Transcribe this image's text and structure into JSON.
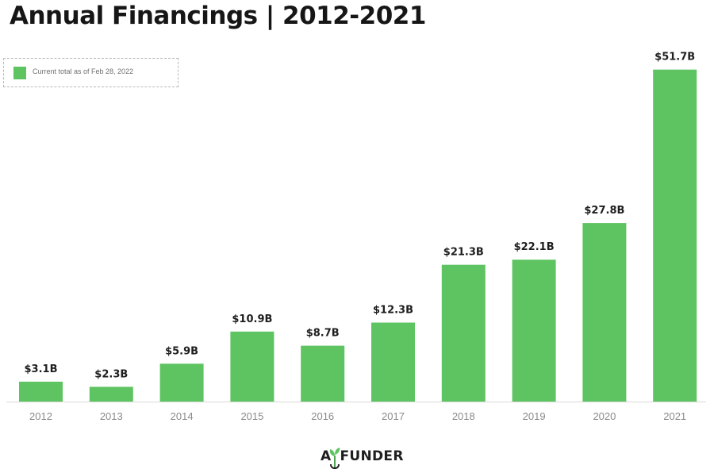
{
  "colors": {
    "bar": "#5ec461",
    "axis": "#d9d9d9",
    "title": "#161616"
  },
  "legend": {
    "label": "Current total as of Feb 28, 2022"
  },
  "logo": {
    "text": "AgFUNDER",
    "icon": "sprout-icon"
  },
  "chart_data": {
    "type": "bar",
    "title": "Annual Financings | 2012-2021",
    "xlabel": "",
    "ylabel": "",
    "ylim": [
      0,
      55
    ],
    "grid": false,
    "legend_position": "top-left",
    "categories": [
      "2012",
      "2013",
      "2014",
      "2015",
      "2016",
      "2017",
      "2018",
      "2019",
      "2020",
      "2021"
    ],
    "values": [
      3.1,
      2.3,
      5.9,
      10.9,
      8.7,
      12.3,
      21.3,
      22.1,
      27.8,
      51.7
    ],
    "data_labels": [
      "$3.1B",
      "$2.3B",
      "$5.9B",
      "$10.9B",
      "$8.7B",
      "$12.3B",
      "$21.3B",
      "$22.1B",
      "$27.8B",
      "$51.7B"
    ],
    "series": [
      {
        "name": "Current total as of Feb 28, 2022",
        "values": [
          3.1,
          2.3,
          5.9,
          10.9,
          8.7,
          12.3,
          21.3,
          22.1,
          27.8,
          51.7
        ]
      }
    ]
  }
}
